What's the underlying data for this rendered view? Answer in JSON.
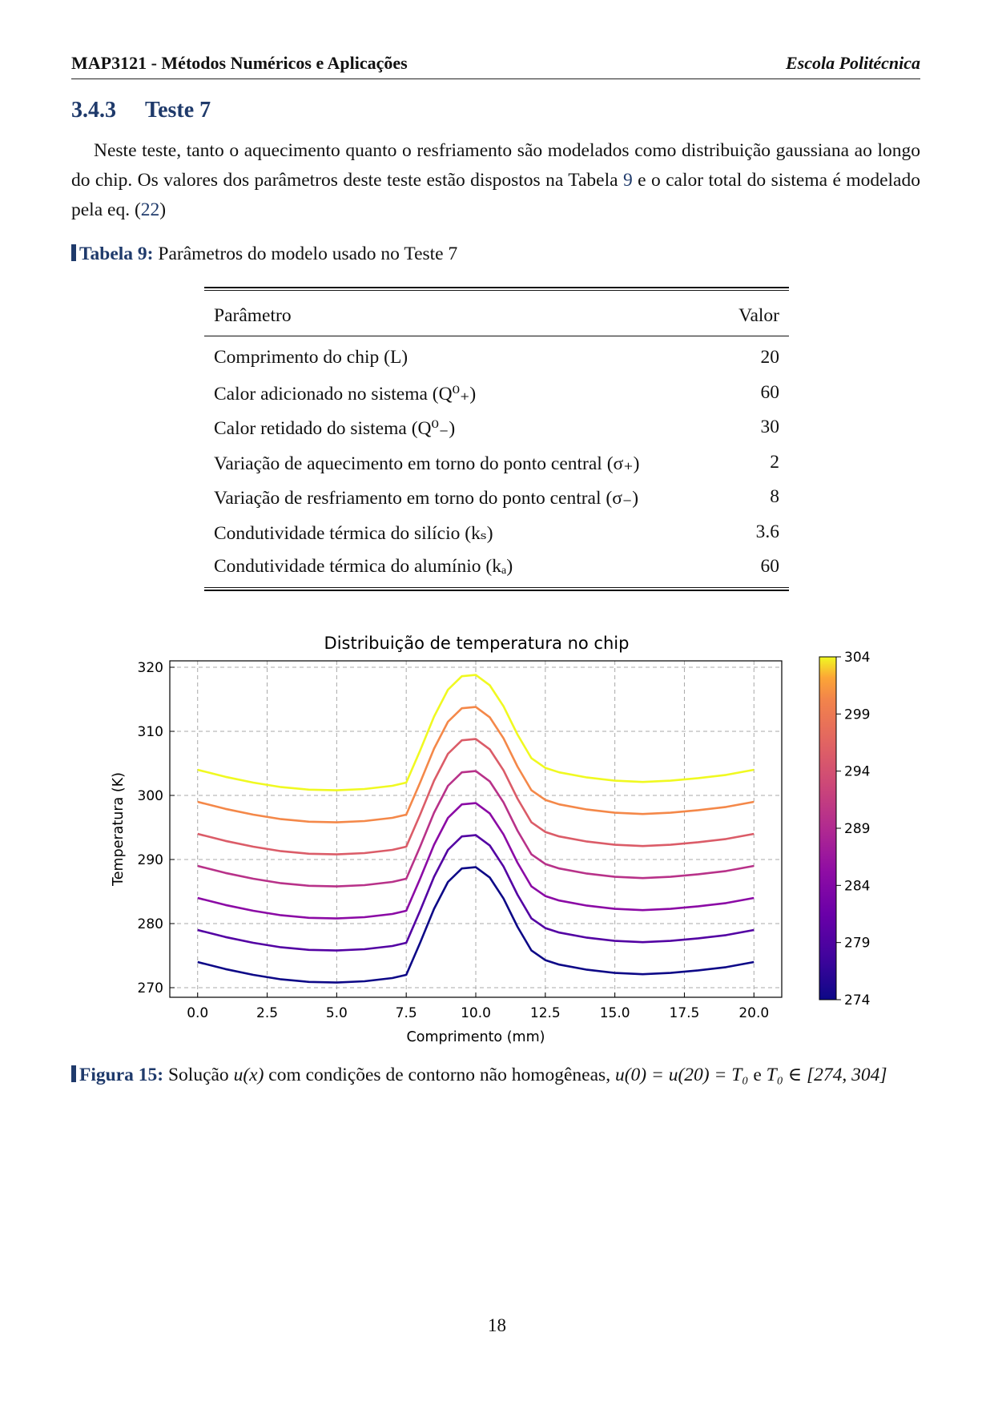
{
  "header": {
    "left": "MAP3121 - Métodos Numéricos e Aplicações",
    "right": "Escola Politécnica"
  },
  "section": {
    "number": "3.4.3",
    "title": "Teste 7"
  },
  "paragraph": {
    "text_1": "Neste teste, tanto o aquecimento quanto o resfriamento são modelados como distribuição gaussiana ao longo do chip. Os valores dos parâmetros deste teste estão dispostos na Tabela ",
    "ref_table": "9",
    "text_2": " e o calor total do sistema é modelado pela eq. (",
    "ref_eq": "22",
    "text_3": ")"
  },
  "table_caption": {
    "label": "Tabela 9:",
    "text": "Parâmetros do modelo usado no Teste 7"
  },
  "table": {
    "header": {
      "param": "Parâmetro",
      "value": "Valor"
    },
    "rows": [
      {
        "param": "Comprimento do chip (L)",
        "value": "20"
      },
      {
        "param": "Calor adicionado no sistema (Q⁰₊)",
        "value": "60"
      },
      {
        "param": "Calor retidado do sistema (Q⁰₋)",
        "value": "30"
      },
      {
        "param": "Variação de aquecimento em torno do ponto central (σ₊)",
        "value": "2"
      },
      {
        "param": "Variação de resfriamento em torno do ponto central (σ₋)",
        "value": "8"
      },
      {
        "param": "Condutividade térmica do silício (kₛ)",
        "value": "3.6"
      },
      {
        "param": "Condutividade térmica do alumínio (kₐ)",
        "value": "60"
      }
    ]
  },
  "chart_data": {
    "type": "line",
    "title": "Distribuição de temperatura no chip",
    "xlabel": "Comprimento (mm)",
    "ylabel": "Temperatura (K)",
    "xlim": [
      -1,
      21
    ],
    "ylim": [
      268.5,
      321
    ],
    "xticks": [
      "0.0",
      "2.5",
      "5.0",
      "7.5",
      "10.0",
      "12.5",
      "15.0",
      "17.5",
      "20.0"
    ],
    "yticks": [
      "270",
      "280",
      "290",
      "300",
      "310",
      "320"
    ],
    "grid": true,
    "x": [
      0,
      1,
      2,
      3,
      4,
      5,
      6,
      7,
      7.5,
      8,
      8.5,
      9,
      9.5,
      10,
      10.5,
      11,
      11.5,
      12,
      12.5,
      13,
      14,
      15,
      16,
      17,
      18,
      19,
      20
    ],
    "series": [
      {
        "boundary": 274,
        "color": "#0d0887",
        "values": [
          274.0,
          272.9,
          272.0,
          271.3,
          270.9,
          270.8,
          271.0,
          271.5,
          272.0,
          277.0,
          282.3,
          286.5,
          288.6,
          288.8,
          287.2,
          283.9,
          279.5,
          275.8,
          274.3,
          273.6,
          272.8,
          272.3,
          272.1,
          272.3,
          272.7,
          273.2,
          274.0
        ]
      },
      {
        "boundary": 279,
        "color": "#5302a3",
        "values": [
          279.0,
          277.9,
          277.0,
          276.3,
          275.9,
          275.8,
          276.0,
          276.5,
          277.0,
          282.0,
          287.3,
          291.5,
          293.6,
          293.8,
          292.2,
          288.9,
          284.5,
          280.8,
          279.3,
          278.6,
          277.8,
          277.3,
          277.1,
          277.3,
          277.7,
          278.2,
          279.0
        ]
      },
      {
        "boundary": 284,
        "color": "#8b0aa5",
        "values": [
          284.0,
          282.9,
          282.0,
          281.3,
          280.9,
          280.8,
          281.0,
          281.5,
          282.0,
          287.0,
          292.3,
          296.5,
          298.6,
          298.8,
          297.2,
          293.9,
          289.5,
          285.8,
          284.3,
          283.6,
          282.8,
          282.3,
          282.1,
          282.3,
          282.7,
          283.2,
          284.0
        ]
      },
      {
        "boundary": 289,
        "color": "#b83289",
        "values": [
          289.0,
          287.9,
          287.0,
          286.3,
          285.9,
          285.8,
          286.0,
          286.5,
          287.0,
          292.0,
          297.3,
          301.5,
          303.6,
          303.8,
          302.2,
          298.9,
          294.5,
          290.8,
          289.3,
          288.6,
          287.8,
          287.3,
          287.1,
          287.3,
          287.7,
          288.2,
          289.0
        ]
      },
      {
        "boundary": 294,
        "color": "#db5c68",
        "values": [
          294.0,
          292.9,
          292.0,
          291.3,
          290.9,
          290.8,
          291.0,
          291.5,
          292.0,
          297.0,
          302.3,
          306.5,
          308.6,
          308.8,
          307.2,
          303.9,
          299.5,
          295.8,
          294.3,
          293.6,
          292.8,
          292.3,
          292.1,
          292.3,
          292.7,
          293.2,
          294.0
        ]
      },
      {
        "boundary": 299,
        "color": "#f48849",
        "values": [
          299.0,
          297.9,
          297.0,
          296.3,
          295.9,
          295.8,
          296.0,
          296.5,
          297.0,
          302.0,
          307.3,
          311.5,
          313.6,
          313.8,
          312.2,
          308.9,
          304.5,
          300.8,
          299.3,
          298.6,
          297.8,
          297.3,
          297.1,
          297.3,
          297.7,
          298.2,
          299.0
        ]
      },
      {
        "boundary": 304,
        "color": "#f0f921",
        "values": [
          304.0,
          302.9,
          302.0,
          301.3,
          300.9,
          300.8,
          301.0,
          301.5,
          302.0,
          307.0,
          312.3,
          316.5,
          318.6,
          318.8,
          317.2,
          313.9,
          309.5,
          305.8,
          304.3,
          303.6,
          302.8,
          302.3,
          302.1,
          302.3,
          302.7,
          303.2,
          304.0
        ]
      }
    ],
    "colorbar": {
      "min": 274,
      "max": 304,
      "ticks": [
        "304",
        "299",
        "294",
        "289",
        "284",
        "279",
        "274"
      ],
      "colormap": "plasma"
    }
  },
  "figure_caption": {
    "label": "Figura 15:",
    "text_1": "Solução ",
    "math_1": "u(x)",
    "text_2": " com condições de contorno não homogêneas, ",
    "math_2": "u(0) = u(20) = T₀",
    "text_3": " e ",
    "math_3": "T₀ ∈ [274, 304]"
  },
  "page_number": "18"
}
